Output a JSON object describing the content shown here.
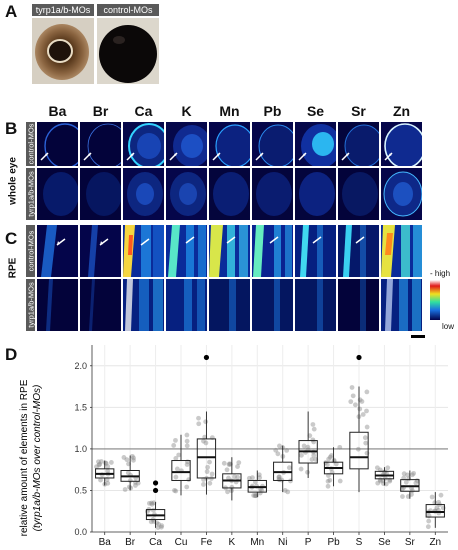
{
  "panel_a": {
    "letter": "A",
    "labels": [
      "tyrp1a/b-MOs",
      "control-MOs"
    ]
  },
  "panel_b": {
    "letter": "B",
    "group_label": "whole eye",
    "row_labels": [
      "control-MOs",
      "tyrp1a/b-MOs"
    ]
  },
  "panel_c": {
    "letter": "C",
    "group_label": "RPE",
    "row_labels": [
      "control-MOs",
      "tyrp1a/b-MOs"
    ],
    "colorbar_high": "- high",
    "colorbar_low": "low"
  },
  "elements_header": [
    "Ba",
    "Br",
    "Ca",
    "K",
    "Mn",
    "Pb",
    "Se",
    "Sr",
    "Zn"
  ],
  "panel_d": {
    "letter": "D",
    "ylabel_line1": "relative amount of elements in RPE",
    "ylabel_line2": "(tyrp1a/b-MOs over control-MOs)"
  },
  "chart_data": {
    "type": "box",
    "categories": [
      "Ba",
      "Br",
      "Ca",
      "Cu",
      "Fe",
      "K",
      "Mn",
      "Ni",
      "P",
      "Pb",
      "S",
      "Se",
      "Sr",
      "Zn"
    ],
    "significant": [
      true,
      true,
      true,
      false,
      false,
      true,
      true,
      false,
      false,
      false,
      false,
      true,
      true,
      true
    ],
    "significance_marker": "*",
    "ylim": [
      0,
      2.25
    ],
    "yticks": [
      "0.0",
      "0.5",
      "1.0",
      "1.5",
      "2.0"
    ],
    "reference_line": 1.0,
    "grid": true,
    "boxes": [
      {
        "q1": 0.65,
        "median": 0.7,
        "q3": 0.76,
        "whisker_low": 0.56,
        "whisker_high": 0.86,
        "outliers": []
      },
      {
        "q1": 0.61,
        "median": 0.67,
        "q3": 0.74,
        "whisker_low": 0.5,
        "whisker_high": 0.92,
        "outliers": []
      },
      {
        "q1": 0.15,
        "median": 0.2,
        "q3": 0.27,
        "whisker_low": 0.05,
        "whisker_high": 0.36,
        "outliers": [
          0.5,
          0.59
        ]
      },
      {
        "q1": 0.62,
        "median": 0.72,
        "q3": 0.86,
        "whisker_low": 0.44,
        "whisker_high": 1.17,
        "outliers": []
      },
      {
        "q1": 0.65,
        "median": 0.9,
        "q3": 1.12,
        "whisker_low": 0.45,
        "whisker_high": 1.45,
        "outliers": [
          2.1
        ]
      },
      {
        "q1": 0.53,
        "median": 0.62,
        "q3": 0.7,
        "whisker_low": 0.38,
        "whisker_high": 0.9,
        "outliers": []
      },
      {
        "q1": 0.48,
        "median": 0.54,
        "q3": 0.62,
        "whisker_low": 0.42,
        "whisker_high": 0.74,
        "outliers": []
      },
      {
        "q1": 0.62,
        "median": 0.72,
        "q3": 0.84,
        "whisker_low": 0.48,
        "whisker_high": 1.04,
        "outliers": []
      },
      {
        "q1": 0.83,
        "median": 0.97,
        "q3": 1.1,
        "whisker_low": 0.65,
        "whisker_high": 1.45,
        "outliers": []
      },
      {
        "q1": 0.7,
        "median": 0.77,
        "q3": 0.84,
        "whisker_low": 0.55,
        "whisker_high": 1.02,
        "outliers": []
      },
      {
        "q1": 0.76,
        "median": 0.9,
        "q3": 1.2,
        "whisker_low": 0.48,
        "whisker_high": 1.75,
        "outliers": [
          2.1
        ]
      },
      {
        "q1": 0.64,
        "median": 0.68,
        "q3": 0.73,
        "whisker_low": 0.56,
        "whisker_high": 0.78,
        "outliers": []
      },
      {
        "q1": 0.49,
        "median": 0.55,
        "q3": 0.63,
        "whisker_low": 0.4,
        "whisker_high": 0.74,
        "outliers": []
      },
      {
        "q1": 0.18,
        "median": 0.24,
        "q3": 0.33,
        "whisker_low": 0.05,
        "whisker_high": 0.48,
        "outliers": []
      }
    ]
  }
}
